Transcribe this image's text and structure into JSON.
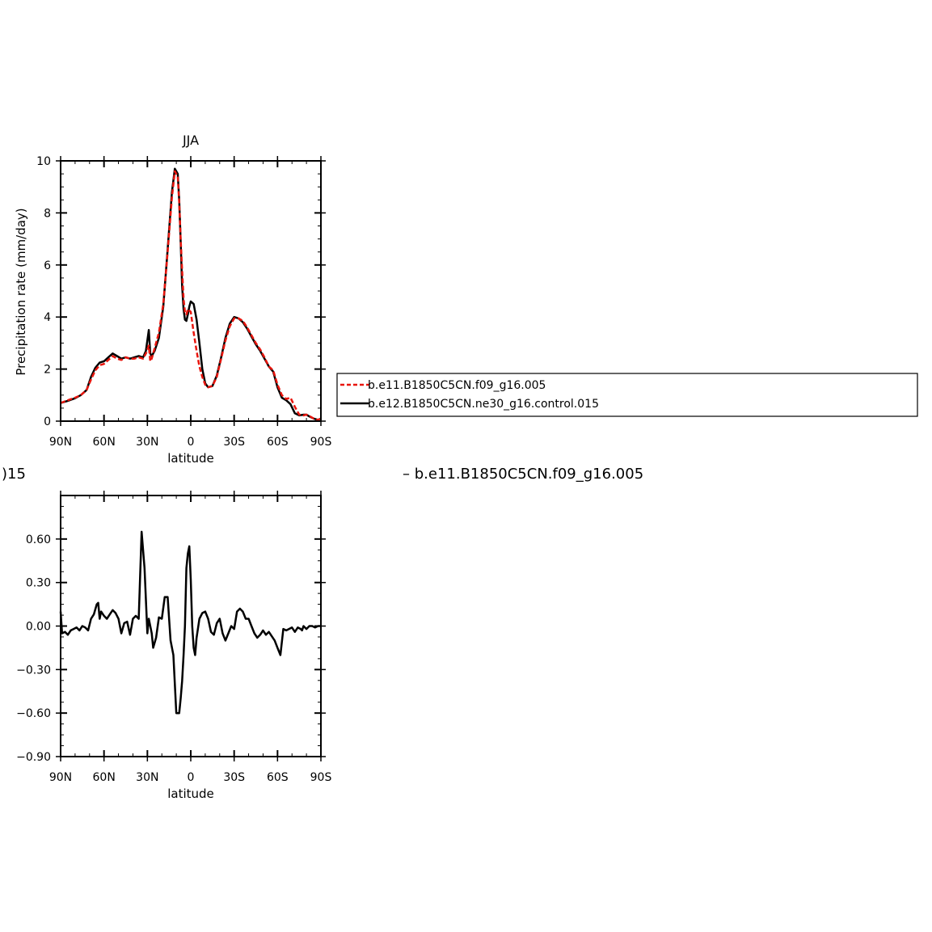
{
  "colors": {
    "series1": "#e8150d",
    "series2": "#000000",
    "background": "#ffffff"
  },
  "chart_data": [
    {
      "type": "line",
      "title": "JJA",
      "xlabel": "latitude",
      "ylabel": "Precipitation rate (mm/day)",
      "xlim": [
        -90,
        90
      ],
      "ylim": [
        0,
        10
      ],
      "xticks": [
        -90,
        -60,
        -30,
        0,
        30,
        60,
        90
      ],
      "xticklabels": [
        "90N",
        "60N",
        "30N",
        "0",
        "30S",
        "60S",
        "90S"
      ],
      "yticks": [
        0,
        2,
        4,
        6,
        8,
        10
      ],
      "yticklabels": [
        "0",
        "2",
        "4",
        "6",
        "8",
        "10"
      ],
      "legend": [
        "b.e11.B1850C5CN.f09_g16.005",
        "b.e12.B1850C5CN.ne30_g16.control.015"
      ],
      "series": [
        {
          "name": "b.e11.B1850C5CN.f09_g16.005",
          "color": "#e8150d",
          "dash": "dashed",
          "x": [
            -90,
            -85,
            -80,
            -76,
            -72,
            -69,
            -66,
            -63,
            -60,
            -57,
            -54,
            -51,
            -48,
            -45,
            -42,
            -39,
            -36,
            -33,
            -31,
            -29,
            -28,
            -27,
            -25,
            -22,
            -19,
            -16,
            -13,
            -11,
            -9,
            -8,
            -7,
            -6,
            -5,
            -4,
            -3,
            -2,
            -1,
            0,
            2,
            4,
            6,
            8,
            10,
            12,
            15,
            18,
            21,
            24,
            27,
            30,
            33,
            36,
            39,
            42,
            45,
            48,
            51,
            54,
            57,
            60,
            63,
            66,
            69,
            72,
            75,
            78,
            80,
            82,
            85,
            88,
            90
          ],
          "y": [
            0.7,
            0.8,
            0.9,
            1.0,
            1.2,
            1.6,
            1.95,
            2.15,
            2.2,
            2.35,
            2.5,
            2.4,
            2.35,
            2.45,
            2.4,
            2.4,
            2.45,
            2.4,
            2.6,
            2.9,
            2.3,
            2.4,
            2.8,
            3.4,
            4.5,
            6.5,
            8.6,
            9.6,
            9.4,
            8.4,
            7.0,
            5.8,
            4.7,
            4.2,
            4.1,
            4.3,
            4.25,
            4.2,
            3.4,
            2.7,
            2.1,
            1.7,
            1.4,
            1.3,
            1.35,
            1.7,
            2.4,
            3.1,
            3.65,
            3.95,
            3.95,
            3.85,
            3.6,
            3.3,
            3.0,
            2.75,
            2.45,
            2.1,
            1.95,
            1.4,
            1.0,
            0.85,
            0.9,
            0.55,
            0.25,
            0.22,
            0.25,
            0.2,
            0.1,
            0.05,
            0.1
          ]
        },
        {
          "name": "b.e12.B1850C5CN.ne30_g16.control.015",
          "color": "#000000",
          "dash": "solid",
          "x": [
            -90,
            -85,
            -80,
            -76,
            -72,
            -69,
            -66,
            -63,
            -60,
            -57,
            -54,
            -51,
            -48,
            -45,
            -42,
            -39,
            -36,
            -33,
            -31,
            -29,
            -28,
            -27,
            -25,
            -22,
            -19,
            -16,
            -13,
            -11,
            -9,
            -8,
            -7,
            -6,
            -5,
            -4,
            -3,
            -2,
            -1,
            0,
            2,
            4,
            6,
            8,
            10,
            12,
            15,
            18,
            21,
            24,
            27,
            30,
            33,
            36,
            39,
            42,
            45,
            48,
            51,
            54,
            57,
            60,
            63,
            66,
            69,
            72,
            75,
            78,
            80,
            82,
            85,
            88,
            90
          ],
          "y": [
            0.7,
            0.78,
            0.88,
            1.0,
            1.2,
            1.7,
            2.05,
            2.25,
            2.3,
            2.45,
            2.6,
            2.5,
            2.4,
            2.45,
            2.4,
            2.45,
            2.5,
            2.45,
            2.7,
            3.5,
            2.6,
            2.5,
            2.7,
            3.2,
            4.4,
            6.6,
            8.8,
            9.7,
            9.5,
            8.5,
            6.9,
            5.2,
            4.3,
            3.9,
            3.85,
            4.1,
            4.4,
            4.6,
            4.5,
            3.9,
            3.0,
            2.0,
            1.45,
            1.3,
            1.35,
            1.75,
            2.45,
            3.2,
            3.75,
            4.0,
            3.95,
            3.8,
            3.55,
            3.25,
            2.95,
            2.7,
            2.4,
            2.1,
            1.9,
            1.3,
            0.9,
            0.8,
            0.65,
            0.3,
            0.22,
            0.25,
            0.25,
            0.18,
            0.1,
            0.05,
            0.1
          ]
        }
      ]
    },
    {
      "type": "line",
      "title": "",
      "header_left": ")15",
      "header_right": "– b.e11.B1850C5CN.f09_g16.005",
      "xlabel": "latitude",
      "ylabel": "",
      "xlim": [
        -90,
        90
      ],
      "ylim": [
        -0.9,
        0.9
      ],
      "xticks": [
        -90,
        -60,
        -30,
        0,
        30,
        60,
        90
      ],
      "xticklabels": [
        "90N",
        "60N",
        "30N",
        "0",
        "30S",
        "60S",
        "90S"
      ],
      "yticks": [
        -0.9,
        -0.6,
        -0.3,
        0.0,
        0.3,
        0.6
      ],
      "yticklabels": [
        "−0.90",
        "−0.60",
        "−0.30",
        "0.00",
        "0.30",
        "0.60"
      ],
      "series": [
        {
          "name": "",
          "color": "#000000",
          "dash": "solid",
          "x": [
            -90,
            -89,
            -87,
            -85,
            -83,
            -81,
            -79,
            -77,
            -75,
            -73,
            -71,
            -69,
            -67,
            -65,
            -64,
            -63,
            -62,
            -60,
            -58,
            -56,
            -54,
            -52,
            -50,
            -48,
            -46,
            -44,
            -42,
            -40,
            -38,
            -36,
            -34,
            -32,
            -30,
            -29,
            -28,
            -27,
            -26,
            -24,
            -22,
            -20,
            -18,
            -16,
            -14,
            -12,
            -10,
            -8,
            -7,
            -6,
            -5,
            -4,
            -3,
            -2,
            -1,
            0,
            1,
            2,
            3,
            4,
            6,
            8,
            10,
            12,
            14,
            16,
            18,
            20,
            22,
            24,
            26,
            28,
            30,
            32,
            34,
            36,
            38,
            40,
            42,
            44,
            46,
            48,
            50,
            52,
            54,
            56,
            58,
            60,
            62,
            64,
            66,
            68,
            70,
            72,
            74,
            76,
            77,
            78,
            80,
            82,
            84,
            86,
            88,
            90
          ],
          "y": [
            0.1,
            -0.05,
            -0.04,
            -0.06,
            -0.03,
            -0.02,
            -0.01,
            -0.03,
            0.0,
            -0.01,
            -0.03,
            0.05,
            0.08,
            0.15,
            0.16,
            0.05,
            0.1,
            0.07,
            0.05,
            0.08,
            0.11,
            0.09,
            0.05,
            -0.05,
            0.02,
            0.03,
            -0.06,
            0.05,
            0.07,
            0.05,
            0.65,
            0.4,
            -0.05,
            0.05,
            0.0,
            -0.05,
            -0.15,
            -0.08,
            0.06,
            0.05,
            0.2,
            0.2,
            -0.1,
            -0.2,
            -0.6,
            -0.6,
            -0.5,
            -0.38,
            -0.2,
            0.0,
            0.4,
            0.5,
            0.55,
            0.32,
            0.0,
            -0.15,
            -0.2,
            -0.08,
            0.05,
            0.09,
            0.1,
            0.05,
            -0.04,
            -0.06,
            0.02,
            0.05,
            -0.05,
            -0.1,
            -0.05,
            0.0,
            -0.02,
            0.1,
            0.12,
            0.1,
            0.05,
            0.05,
            0.0,
            -0.05,
            -0.08,
            -0.06,
            -0.03,
            -0.06,
            -0.04,
            -0.07,
            -0.1,
            -0.15,
            -0.2,
            -0.02,
            -0.03,
            -0.02,
            -0.01,
            -0.04,
            -0.01,
            -0.02,
            -0.03,
            0.0,
            -0.02,
            0.0,
            0.0,
            -0.01,
            0.0,
            0.0
          ]
        }
      ]
    }
  ]
}
